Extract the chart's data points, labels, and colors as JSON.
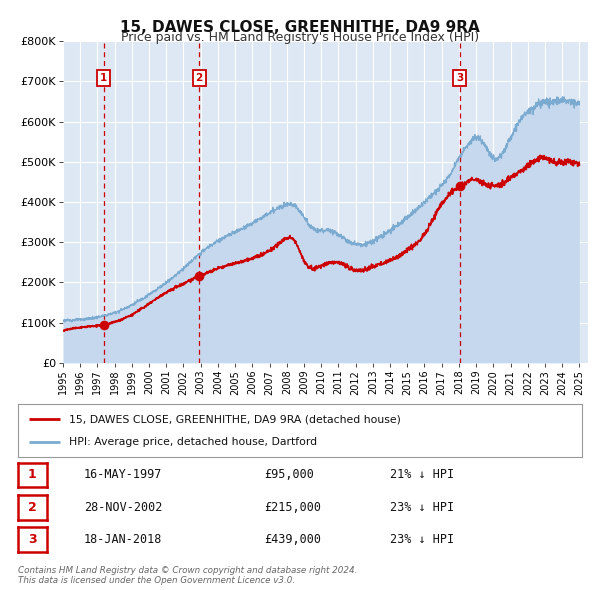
{
  "title": "15, DAWES CLOSE, GREENHITHE, DA9 9RA",
  "subtitle": "Price paid vs. HM Land Registry's House Price Index (HPI)",
  "bg_color": "#ffffff",
  "plot_bg_color": "#dde8f4",
  "grid_color": "#ffffff",
  "sale_color": "#cc0000",
  "hpi_color": "#7aaad0",
  "hpi_fill_color": "#c5d8ee",
  "sale_dates": [
    1997.37,
    2002.91,
    2018.05
  ],
  "sale_prices": [
    95000,
    215000,
    439000
  ],
  "sale_labels": [
    "1",
    "2",
    "3"
  ],
  "vline_color": "#cc0000",
  "marker_color": "#cc0000",
  "marker_size": 7,
  "legend_sale_label": "15, DAWES CLOSE, GREENHITHE, DA9 9RA (detached house)",
  "legend_hpi_label": "HPI: Average price, detached house, Dartford",
  "table_rows": [
    {
      "num": "1",
      "date": "16-MAY-1997",
      "price": "£95,000",
      "pct": "21% ↓ HPI"
    },
    {
      "num": "2",
      "date": "28-NOV-2002",
      "price": "£215,000",
      "pct": "23% ↓ HPI"
    },
    {
      "num": "3",
      "date": "18-JAN-2018",
      "price": "£439,000",
      "pct": "23% ↓ HPI"
    }
  ],
  "footnote1": "Contains HM Land Registry data © Crown copyright and database right 2024.",
  "footnote2": "This data is licensed under the Open Government Licence v3.0.",
  "xmin": 1995,
  "xmax": 2025.5,
  "ylim": [
    0,
    800000
  ],
  "yticks": [
    0,
    100000,
    200000,
    300000,
    400000,
    500000,
    600000,
    700000,
    800000
  ],
  "ytick_labels": [
    "£0",
    "£100K",
    "£200K",
    "£300K",
    "£400K",
    "£500K",
    "£600K",
    "£700K",
    "£800K"
  ],
  "xtick_years": [
    1995,
    1996,
    1997,
    1998,
    1999,
    2000,
    2001,
    2002,
    2003,
    2004,
    2005,
    2006,
    2007,
    2008,
    2009,
    2010,
    2011,
    2012,
    2013,
    2014,
    2015,
    2016,
    2017,
    2018,
    2019,
    2020,
    2021,
    2022,
    2023,
    2024,
    2025
  ]
}
